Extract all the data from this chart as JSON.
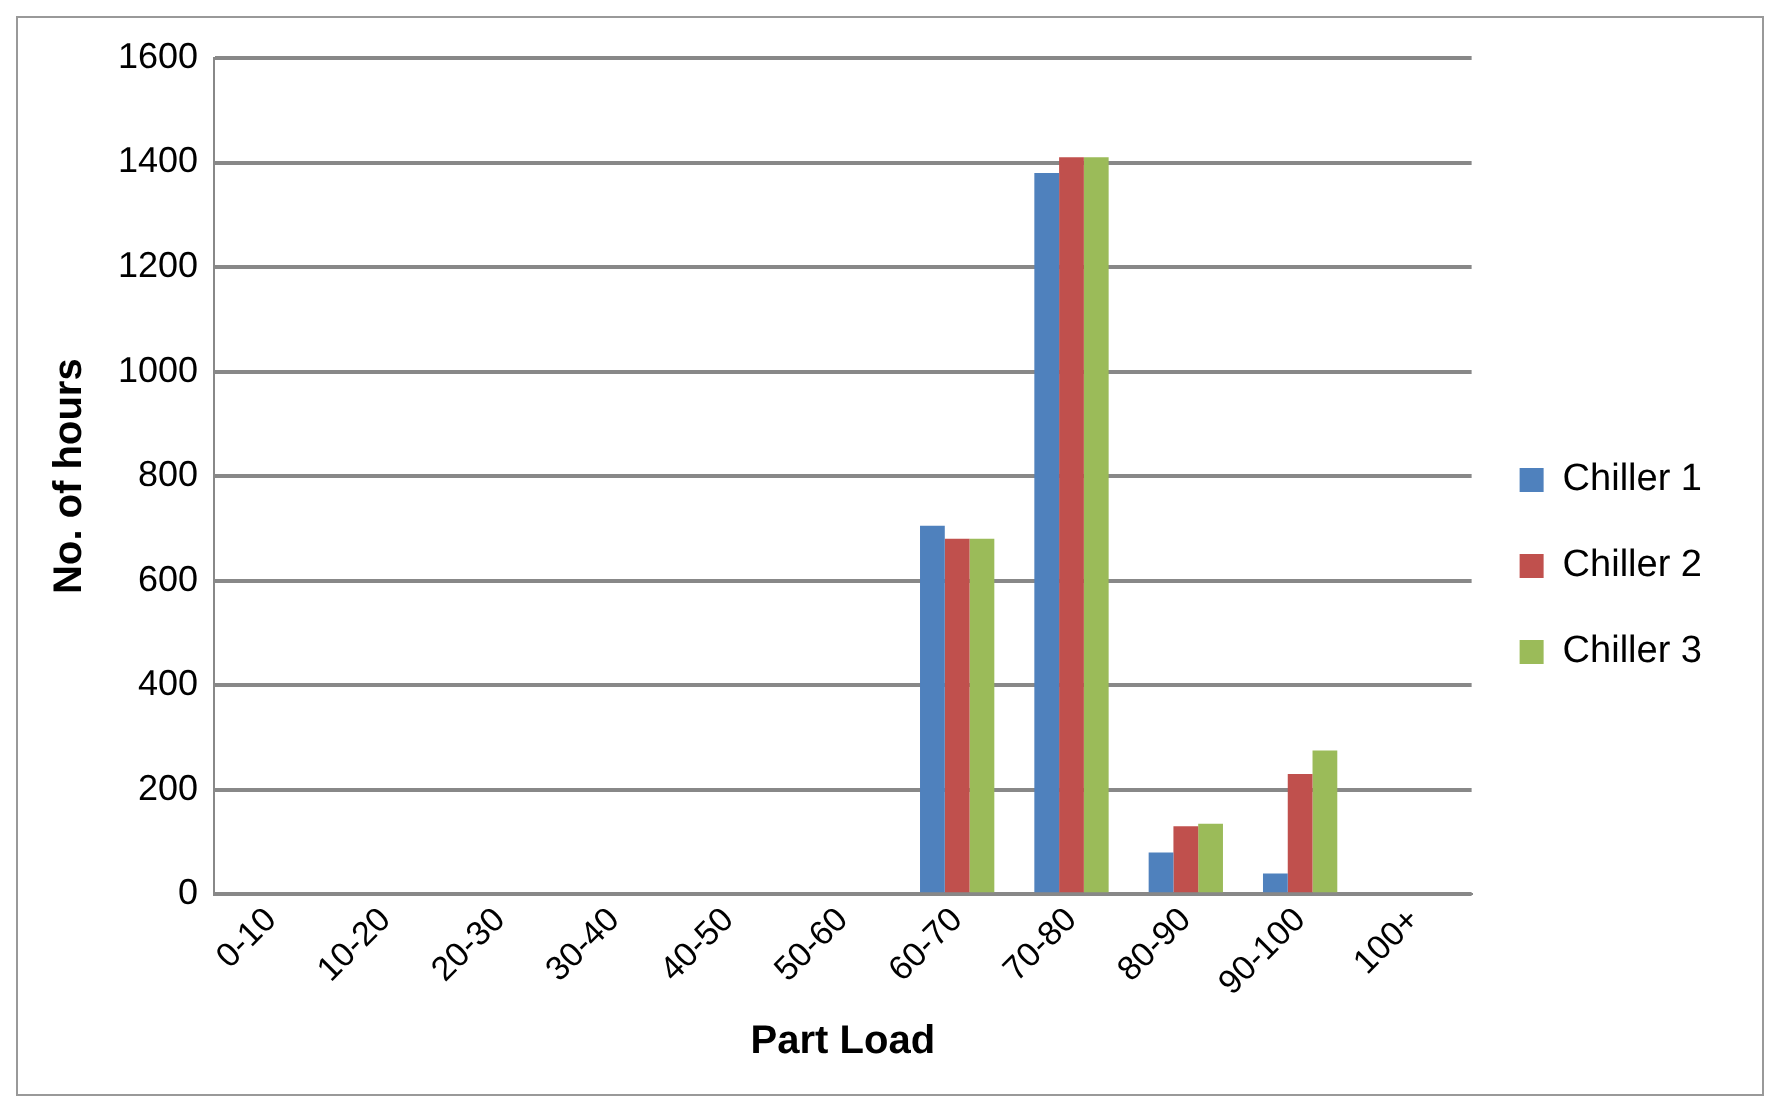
{
  "chart_data": {
    "type": "bar",
    "xlabel": "Part Load",
    "ylabel": "No. of hours",
    "categories": [
      "0-10",
      "10-20",
      "20-30",
      "30-40",
      "40-50",
      "50-60",
      "60-70",
      "70-80",
      "80-90",
      "90-100",
      "100+"
    ],
    "series": [
      {
        "name": "Chiller 1",
        "color": "#4f81bd",
        "values": [
          0,
          0,
          0,
          0,
          0,
          0,
          705,
          1380,
          80,
          40,
          0
        ]
      },
      {
        "name": "Chiller 2",
        "color": "#c0504d",
        "values": [
          0,
          0,
          0,
          0,
          0,
          0,
          680,
          1410,
          130,
          230,
          0
        ]
      },
      {
        "name": "Chiller 3",
        "color": "#9bbb59",
        "values": [
          0,
          0,
          0,
          0,
          0,
          0,
          680,
          1410,
          135,
          275,
          0
        ]
      }
    ],
    "ylim": [
      0,
      1600
    ],
    "yticks": [
      0,
      200,
      400,
      600,
      800,
      1000,
      1200,
      1400,
      1600
    ],
    "grid": "y",
    "legend": "right"
  }
}
